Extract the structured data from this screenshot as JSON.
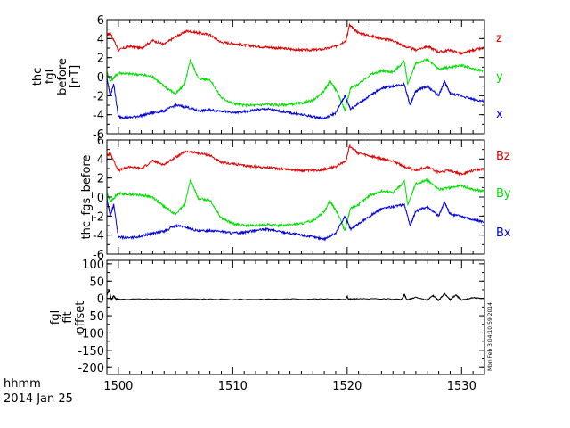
{
  "colors": {
    "red": "#e00000",
    "green": "#00e000",
    "blue": "#0000e0",
    "black": "#000000"
  },
  "footer": {
    "line1": "hhmm",
    "line2": "2014 Jan 25"
  },
  "stamp": "Mon Feb  3 04:10:59 2014",
  "chart_data": [
    {
      "type": "line",
      "panel_id": "fgl_before",
      "ytitle_lines": [
        "thc",
        "fgl",
        "before",
        "[nT]"
      ],
      "ylim": [
        -6,
        6
      ],
      "yticks": [
        -6,
        -4,
        -2,
        0,
        2,
        4,
        6
      ],
      "xlim": [
        1499,
        1532
      ],
      "xticks": [
        1500,
        1510,
        1520,
        1530
      ],
      "xtick_labels": [
        "",
        "",
        "",
        ""
      ],
      "grid": false,
      "series": [
        {
          "name": "z",
          "color": "red",
          "x": [
            1499,
            1499.3,
            1500,
            1501,
            1502,
            1503,
            1504,
            1505,
            1506,
            1507,
            1508,
            1509,
            1510,
            1511,
            1512,
            1513,
            1514,
            1515,
            1516,
            1517,
            1518,
            1519,
            1519.9,
            1520.2,
            1521,
            1522,
            1523,
            1524,
            1525,
            1526,
            1527,
            1528,
            1529,
            1530,
            1531,
            1532
          ],
          "y": [
            4.4,
            4.6,
            2.8,
            3.2,
            3.0,
            3.8,
            3.4,
            4.2,
            4.8,
            4.6,
            4.4,
            3.6,
            3.5,
            3.3,
            3.2,
            3.1,
            3.0,
            2.9,
            2.8,
            2.8,
            2.9,
            3.2,
            3.8,
            5.4,
            4.6,
            4.3,
            4.0,
            3.8,
            3.2,
            2.8,
            3.2,
            2.6,
            2.8,
            2.4,
            2.8,
            3.0
          ]
        },
        {
          "name": "y",
          "color": "green",
          "x": [
            1499,
            1499.3,
            1500,
            1501,
            1502,
            1503,
            1504,
            1505,
            1505.8,
            1506.3,
            1507,
            1508,
            1509,
            1510,
            1511,
            1512,
            1513,
            1514,
            1515,
            1516,
            1517,
            1518,
            1518.5,
            1519.2,
            1519.8,
            1520.3,
            1521,
            1522,
            1523,
            1524,
            1525,
            1525.3,
            1526,
            1527,
            1528,
            1529,
            1530,
            1531,
            1532
          ],
          "y": [
            0.5,
            -0.5,
            0.4,
            0.3,
            0.2,
            0.0,
            -1.0,
            -1.8,
            -0.8,
            1.8,
            -0.2,
            -0.3,
            -2.2,
            -2.8,
            -3.0,
            -3.0,
            -2.9,
            -3.0,
            -2.9,
            -2.8,
            -2.5,
            -1.5,
            -0.4,
            -1.8,
            -3.5,
            -1.2,
            -0.8,
            0.2,
            0.6,
            0.5,
            1.6,
            -0.8,
            1.4,
            1.8,
            0.8,
            1.0,
            1.2,
            0.8,
            0.6
          ]
        },
        {
          "name": "x",
          "color": "blue",
          "x": [
            1499,
            1499.3,
            1499.6,
            1500,
            1501,
            1502,
            1503,
            1504,
            1505,
            1506,
            1507,
            1508,
            1509,
            1510,
            1511,
            1512,
            1513,
            1514,
            1515,
            1516,
            1517,
            1518,
            1519,
            1519.8,
            1520.3,
            1521,
            1522,
            1523,
            1524,
            1525,
            1525.5,
            1526,
            1527,
            1528,
            1528.5,
            1529,
            1530,
            1531,
            1532
          ],
          "y": [
            -0.2,
            -2.0,
            -0.8,
            -4.2,
            -4.3,
            -4.1,
            -3.8,
            -3.6,
            -3.0,
            -3.2,
            -3.6,
            -3.5,
            -3.6,
            -3.8,
            -3.7,
            -3.5,
            -3.4,
            -3.6,
            -3.8,
            -4.0,
            -4.2,
            -4.4,
            -3.8,
            -2.0,
            -3.4,
            -2.8,
            -2.0,
            -1.2,
            -1.0,
            -0.8,
            -3.0,
            -1.5,
            -1.0,
            -2.0,
            -0.5,
            -1.8,
            -2.0,
            -2.4,
            -2.6
          ]
        }
      ]
    },
    {
      "type": "line",
      "panel_id": "fgs_before",
      "ytitle_lines": [
        "thc_fgs_before"
      ],
      "ylim": [
        -6,
        6
      ],
      "yticks": [
        -6,
        -4,
        -2,
        0,
        2,
        4,
        6
      ],
      "xlim": [
        1499,
        1532
      ],
      "xticks": [
        1500,
        1510,
        1520,
        1530
      ],
      "xtick_labels": [
        "",
        "",
        "",
        ""
      ],
      "grid": false,
      "series": [
        {
          "name": "Bz",
          "color": "red",
          "x": [
            1499,
            1499.3,
            1500,
            1501,
            1502,
            1503,
            1504,
            1505,
            1506,
            1507,
            1508,
            1509,
            1510,
            1511,
            1512,
            1513,
            1514,
            1515,
            1516,
            1517,
            1518,
            1519,
            1519.9,
            1520.2,
            1521,
            1522,
            1523,
            1524,
            1525,
            1526,
            1527,
            1528,
            1529,
            1530,
            1531,
            1532
          ],
          "y": [
            4.4,
            4.6,
            2.8,
            3.2,
            3.0,
            3.8,
            3.4,
            4.2,
            4.8,
            4.6,
            4.4,
            3.6,
            3.5,
            3.3,
            3.2,
            3.1,
            3.0,
            2.9,
            2.8,
            2.8,
            2.9,
            3.2,
            3.8,
            5.4,
            4.6,
            4.3,
            4.0,
            3.8,
            3.2,
            2.8,
            3.2,
            2.6,
            2.8,
            2.4,
            2.8,
            3.0
          ]
        },
        {
          "name": "By",
          "color": "green",
          "x": [
            1499,
            1499.3,
            1500,
            1501,
            1502,
            1503,
            1504,
            1505,
            1505.8,
            1506.3,
            1507,
            1508,
            1509,
            1510,
            1511,
            1512,
            1513,
            1514,
            1515,
            1516,
            1517,
            1518,
            1518.5,
            1519.2,
            1519.8,
            1520.3,
            1521,
            1522,
            1523,
            1524,
            1525,
            1525.3,
            1526,
            1527,
            1528,
            1529,
            1530,
            1531,
            1532
          ],
          "y": [
            0.5,
            -0.5,
            0.4,
            0.3,
            0.2,
            0.0,
            -1.0,
            -1.8,
            -0.8,
            1.8,
            -0.2,
            -0.3,
            -2.2,
            -2.8,
            -3.0,
            -3.0,
            -2.9,
            -3.0,
            -2.9,
            -2.8,
            -2.5,
            -1.5,
            -0.4,
            -1.8,
            -3.5,
            -1.2,
            -0.8,
            0.2,
            0.6,
            0.5,
            1.6,
            -0.8,
            1.4,
            1.8,
            0.8,
            1.0,
            1.2,
            0.8,
            0.6
          ]
        },
        {
          "name": "Bx",
          "color": "blue",
          "x": [
            1499,
            1499.3,
            1499.6,
            1500,
            1501,
            1502,
            1503,
            1504,
            1505,
            1506,
            1507,
            1508,
            1509,
            1510,
            1511,
            1512,
            1513,
            1514,
            1515,
            1516,
            1517,
            1518,
            1519,
            1519.8,
            1520.3,
            1521,
            1522,
            1523,
            1524,
            1525,
            1525.5,
            1526,
            1527,
            1528,
            1528.5,
            1529,
            1530,
            1531,
            1532
          ],
          "y": [
            -0.2,
            -2.0,
            -0.8,
            -4.2,
            -4.3,
            -4.1,
            -3.8,
            -3.6,
            -3.0,
            -3.2,
            -3.6,
            -3.5,
            -3.6,
            -3.8,
            -3.7,
            -3.5,
            -3.4,
            -3.6,
            -3.8,
            -4.0,
            -4.2,
            -4.4,
            -3.8,
            -2.0,
            -3.4,
            -2.8,
            -2.0,
            -1.2,
            -1.0,
            -0.8,
            -3.0,
            -1.5,
            -1.0,
            -2.0,
            -0.5,
            -1.8,
            -2.0,
            -2.4,
            -2.6
          ]
        }
      ]
    },
    {
      "type": "line",
      "panel_id": "fgl_offset",
      "ytitle_lines": [
        "fgl",
        "fit",
        "offset"
      ],
      "ylim": [
        -220,
        110
      ],
      "yticks": [
        -200,
        -150,
        -100,
        -50,
        0,
        50,
        100
      ],
      "xlim": [
        1499,
        1532
      ],
      "xticks": [
        1500,
        1510,
        1520,
        1530
      ],
      "xtick_labels": [
        "1500",
        "1510",
        "1520",
        "1530"
      ],
      "grid": false,
      "series": [
        {
          "name": "",
          "color": "black",
          "x": [
            1499,
            1499.2,
            1499.4,
            1499.6,
            1499.8,
            1500,
            1505,
            1510,
            1515,
            1519.9,
            1520.0,
            1520.1,
            1521,
            1524.8,
            1525.0,
            1525.2,
            1526,
            1527,
            1527.5,
            1528,
            1528.5,
            1529,
            1529.5,
            1530,
            1531,
            1532
          ],
          "y": [
            10,
            25,
            -5,
            8,
            -3,
            -2,
            -2,
            -3,
            -2,
            -2,
            6,
            -2,
            -1,
            -2,
            12,
            -4,
            3,
            -5,
            8,
            -6,
            14,
            -4,
            10,
            -5,
            2,
            0
          ]
        }
      ]
    }
  ]
}
